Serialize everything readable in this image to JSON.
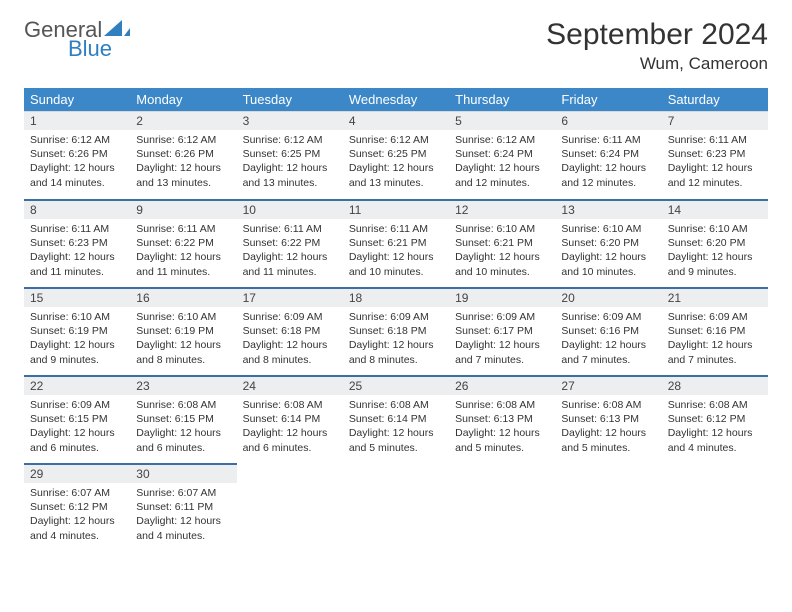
{
  "brand": {
    "part1": "General",
    "part2": "Blue",
    "sail_color": "#2f7fc1"
  },
  "header": {
    "title": "September 2024",
    "location": "Wum, Cameroon"
  },
  "colors": {
    "header_bg": "#3b87c8",
    "daynum_bg": "#eceeef",
    "row_rule": "#3b6fa3"
  },
  "calendar": {
    "weekdays": [
      "Sunday",
      "Monday",
      "Tuesday",
      "Wednesday",
      "Thursday",
      "Friday",
      "Saturday"
    ],
    "weeks": [
      [
        {
          "n": "1",
          "sr": "6:12 AM",
          "ss": "6:26 PM",
          "dl": "12 hours and 14 minutes."
        },
        {
          "n": "2",
          "sr": "6:12 AM",
          "ss": "6:26 PM",
          "dl": "12 hours and 13 minutes."
        },
        {
          "n": "3",
          "sr": "6:12 AM",
          "ss": "6:25 PM",
          "dl": "12 hours and 13 minutes."
        },
        {
          "n": "4",
          "sr": "6:12 AM",
          "ss": "6:25 PM",
          "dl": "12 hours and 13 minutes."
        },
        {
          "n": "5",
          "sr": "6:12 AM",
          "ss": "6:24 PM",
          "dl": "12 hours and 12 minutes."
        },
        {
          "n": "6",
          "sr": "6:11 AM",
          "ss": "6:24 PM",
          "dl": "12 hours and 12 minutes."
        },
        {
          "n": "7",
          "sr": "6:11 AM",
          "ss": "6:23 PM",
          "dl": "12 hours and 12 minutes."
        }
      ],
      [
        {
          "n": "8",
          "sr": "6:11 AM",
          "ss": "6:23 PM",
          "dl": "12 hours and 11 minutes."
        },
        {
          "n": "9",
          "sr": "6:11 AM",
          "ss": "6:22 PM",
          "dl": "12 hours and 11 minutes."
        },
        {
          "n": "10",
          "sr": "6:11 AM",
          "ss": "6:22 PM",
          "dl": "12 hours and 11 minutes."
        },
        {
          "n": "11",
          "sr": "6:11 AM",
          "ss": "6:21 PM",
          "dl": "12 hours and 10 minutes."
        },
        {
          "n": "12",
          "sr": "6:10 AM",
          "ss": "6:21 PM",
          "dl": "12 hours and 10 minutes."
        },
        {
          "n": "13",
          "sr": "6:10 AM",
          "ss": "6:20 PM",
          "dl": "12 hours and 10 minutes."
        },
        {
          "n": "14",
          "sr": "6:10 AM",
          "ss": "6:20 PM",
          "dl": "12 hours and 9 minutes."
        }
      ],
      [
        {
          "n": "15",
          "sr": "6:10 AM",
          "ss": "6:19 PM",
          "dl": "12 hours and 9 minutes."
        },
        {
          "n": "16",
          "sr": "6:10 AM",
          "ss": "6:19 PM",
          "dl": "12 hours and 8 minutes."
        },
        {
          "n": "17",
          "sr": "6:09 AM",
          "ss": "6:18 PM",
          "dl": "12 hours and 8 minutes."
        },
        {
          "n": "18",
          "sr": "6:09 AM",
          "ss": "6:18 PM",
          "dl": "12 hours and 8 minutes."
        },
        {
          "n": "19",
          "sr": "6:09 AM",
          "ss": "6:17 PM",
          "dl": "12 hours and 7 minutes."
        },
        {
          "n": "20",
          "sr": "6:09 AM",
          "ss": "6:16 PM",
          "dl": "12 hours and 7 minutes."
        },
        {
          "n": "21",
          "sr": "6:09 AM",
          "ss": "6:16 PM",
          "dl": "12 hours and 7 minutes."
        }
      ],
      [
        {
          "n": "22",
          "sr": "6:09 AM",
          "ss": "6:15 PM",
          "dl": "12 hours and 6 minutes."
        },
        {
          "n": "23",
          "sr": "6:08 AM",
          "ss": "6:15 PM",
          "dl": "12 hours and 6 minutes."
        },
        {
          "n": "24",
          "sr": "6:08 AM",
          "ss": "6:14 PM",
          "dl": "12 hours and 6 minutes."
        },
        {
          "n": "25",
          "sr": "6:08 AM",
          "ss": "6:14 PM",
          "dl": "12 hours and 5 minutes."
        },
        {
          "n": "26",
          "sr": "6:08 AM",
          "ss": "6:13 PM",
          "dl": "12 hours and 5 minutes."
        },
        {
          "n": "27",
          "sr": "6:08 AM",
          "ss": "6:13 PM",
          "dl": "12 hours and 5 minutes."
        },
        {
          "n": "28",
          "sr": "6:08 AM",
          "ss": "6:12 PM",
          "dl": "12 hours and 4 minutes."
        }
      ],
      [
        {
          "n": "29",
          "sr": "6:07 AM",
          "ss": "6:12 PM",
          "dl": "12 hours and 4 minutes."
        },
        {
          "n": "30",
          "sr": "6:07 AM",
          "ss": "6:11 PM",
          "dl": "12 hours and 4 minutes."
        },
        null,
        null,
        null,
        null,
        null
      ]
    ],
    "labels": {
      "sunrise": "Sunrise:",
      "sunset": "Sunset:",
      "daylight": "Daylight:"
    }
  }
}
